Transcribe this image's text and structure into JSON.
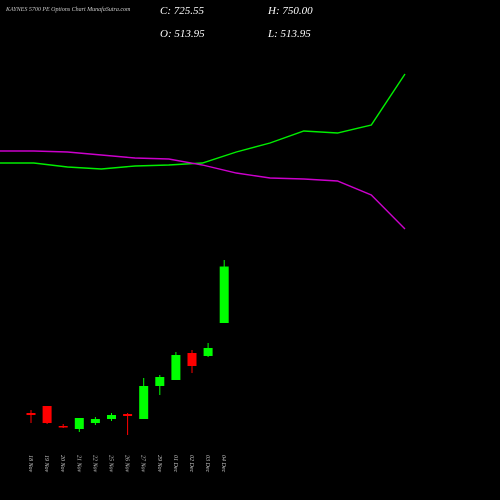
{
  "chart_data": {
    "type": "candlestick",
    "title": "KAYNES 5700 PE Options Chart MunafaSutra.com",
    "header": [
      "C: 725.55",
      "H: 750.00",
      "O: 513.95",
      "L: 513.95"
    ],
    "categories": [
      "18 Nov",
      "19 Nov",
      "20 Nov",
      "21 Nov",
      "22 Nov",
      "25 Nov",
      "26 Nov",
      "27 Nov",
      "29 Nov",
      "01 Dec",
      "02 Dec",
      "03 Dec",
      "04 Dec"
    ],
    "open": [
      176.7,
      202.9,
      128.0,
      116.8,
      139.2,
      154.2,
      172.9,
      154.2,
      277.9,
      300.4,
      401.5,
      390.3,
      513.95
    ],
    "high": [
      187.9,
      202.9,
      135.5,
      158.0,
      161.7,
      176.7,
      176.7,
      307.9,
      319.1,
      405.3,
      412.8,
      439.0,
      750
    ],
    "low": [
      139.2,
      135.5,
      120.5,
      105.5,
      131.8,
      146.8,
      94.3,
      154.2,
      244.2,
      300.4,
      326.6,
      386.5,
      513.95
    ],
    "close": [
      169.2,
      139.2,
      124.3,
      158.0,
      154.2,
      169.2,
      165.5,
      277.9,
      311.6,
      394.0,
      352.8,
      420.3,
      725.55
    ],
    "up_color": "#00ff00",
    "down_color": "#ff0000",
    "lines": [
      {
        "color": "#00ee00",
        "values": [
          337,
          337,
          333,
          331,
          334,
          335,
          337,
          348,
          357,
          369,
          367,
          375,
          426
        ]
      },
      {
        "color": "#cc00cc",
        "values": [
          349,
          349,
          348,
          345,
          342,
          341,
          335,
          327,
          322,
          321,
          319,
          305,
          271
        ]
      }
    ]
  }
}
